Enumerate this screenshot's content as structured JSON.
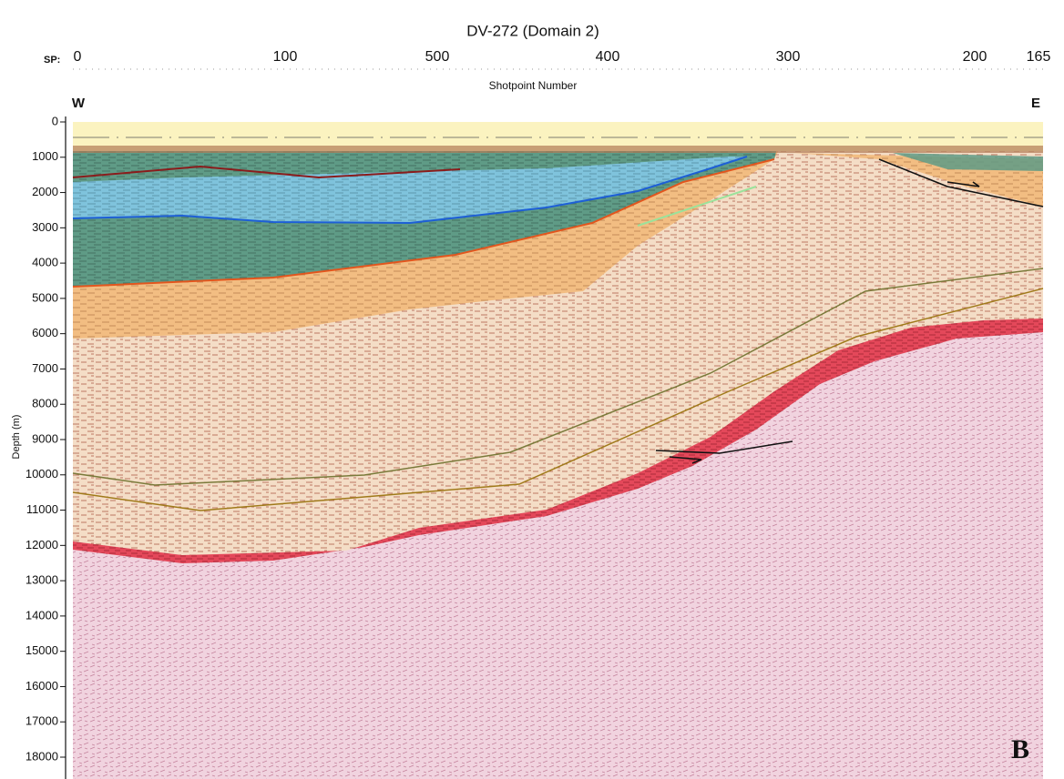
{
  "figure": {
    "title": "DV-272 (Domain 2)",
    "shotpoint_prefix": "SP:",
    "shotpoints": [
      "0",
      "100",
      "500",
      "400",
      "300",
      "200",
      "165"
    ],
    "x_label": "Shotpoint Number",
    "west": "W",
    "east": "E",
    "y_label": "Depth (m)",
    "depth_ticks": [
      0,
      1000,
      2000,
      3000,
      4000,
      5000,
      6000,
      7000,
      8000,
      9000,
      10000,
      11000,
      12000,
      13000,
      14000,
      15000,
      16000,
      17000,
      18000
    ],
    "depth_range": [
      0,
      18000
    ],
    "panel_label": "B"
  }
}
